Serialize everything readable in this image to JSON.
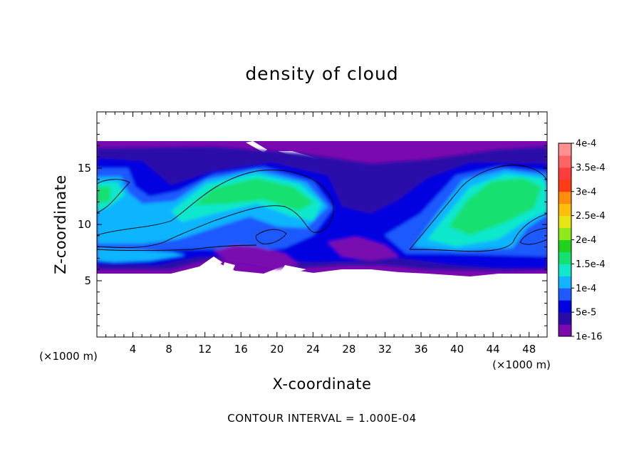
{
  "chart_data": {
    "type": "heatmap",
    "title": "density of cloud",
    "xlabel": "X-coordinate",
    "ylabel": "Z-coordinate",
    "xlim": [
      0,
      50
    ],
    "ylim": [
      0,
      20
    ],
    "x_ticks": [
      4,
      8,
      12,
      16,
      20,
      24,
      28,
      32,
      36,
      40,
      44,
      48
    ],
    "y_ticks": [
      5,
      10,
      15
    ],
    "x_unit_label": "(×1000 m)",
    "y_unit_label": "(×1000 m)",
    "footer": "CONTOUR INTERVAL = 1.000E-04",
    "colorbar": {
      "labels": [
        "1e-16",
        "5e-5",
        "1e-4",
        "1.5e-4",
        "2e-4",
        "2.5e-4",
        "3e-4",
        "3.5e-4",
        "4e-4"
      ],
      "values": [
        1e-16,
        5e-05,
        0.0001,
        0.00015,
        0.0002,
        0.00025,
        0.0003,
        0.00035,
        0.0004
      ],
      "colors": [
        "#7a0ab0",
        "#2a0aa8",
        "#0000e0",
        "#1e5aff",
        "#10b4ff",
        "#10e8cc",
        "#14e070",
        "#1ed21e",
        "#8ee81a",
        "#e6e614",
        "#ffbe0a",
        "#ff8c0a",
        "#ff3c14",
        "#ff3c3c",
        "#ff6464",
        "#ff9090"
      ]
    },
    "grid": false
  }
}
